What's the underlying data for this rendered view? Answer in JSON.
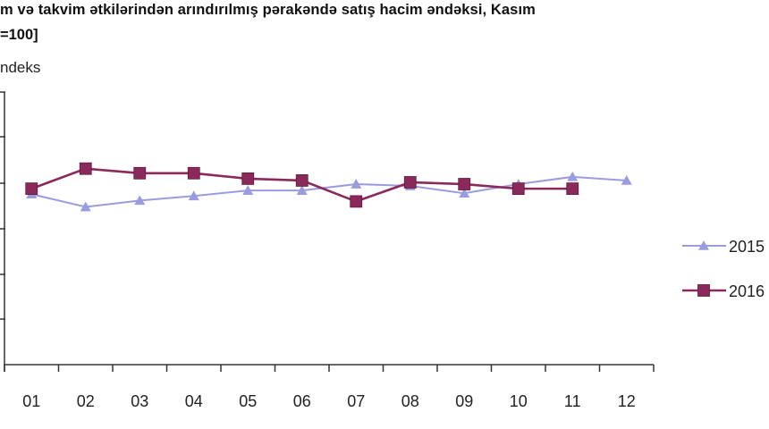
{
  "title": {
    "line1": "m və takvim ətkilərindən arındırılmış pərakəndə satış hacim əndəksi, Kasım",
    "line2": "=100]"
  },
  "colors": {
    "series_2015": "#9b9be0",
    "series_2016": "#8b2a5a",
    "axis": "#333333"
  },
  "chart_data": {
    "type": "line",
    "title": "...m ve takvim etkilerinden arındırılmış perakende satış hacim endeksi, Kasım ...=100]",
    "ylabel": "Endeks",
    "xlabel": "",
    "categories": [
      "01",
      "02",
      "03",
      "04",
      "05",
      "06",
      "07",
      "08",
      "09",
      "10",
      "11",
      "12"
    ],
    "series": [
      {
        "name": "2015",
        "marker": "triangle",
        "values": [
          98.8,
          97.4,
          98.1,
          98.6,
          99.2,
          99.2,
          99.9,
          99.7,
          98.9,
          99.9,
          100.7,
          100.3
        ]
      },
      {
        "name": "2016",
        "marker": "square",
        "values": [
          99.4,
          101.6,
          101.1,
          101.1,
          100.5,
          100.3,
          98.0,
          100.1,
          99.9,
          99.4,
          99.4,
          null
        ]
      }
    ],
    "ylim": [
      80,
      110
    ],
    "y_tick_labels_visible": false,
    "grid": false,
    "legend_position": "right"
  },
  "axis": {
    "y_label": "ndeks",
    "x_ticks": [
      "01",
      "02",
      "03",
      "04",
      "05",
      "06",
      "07",
      "08",
      "09",
      "10",
      "11",
      "12"
    ]
  },
  "legend": {
    "items": [
      {
        "label": "2015",
        "marker": "triangle"
      },
      {
        "label": "2016",
        "marker": "square"
      }
    ]
  }
}
